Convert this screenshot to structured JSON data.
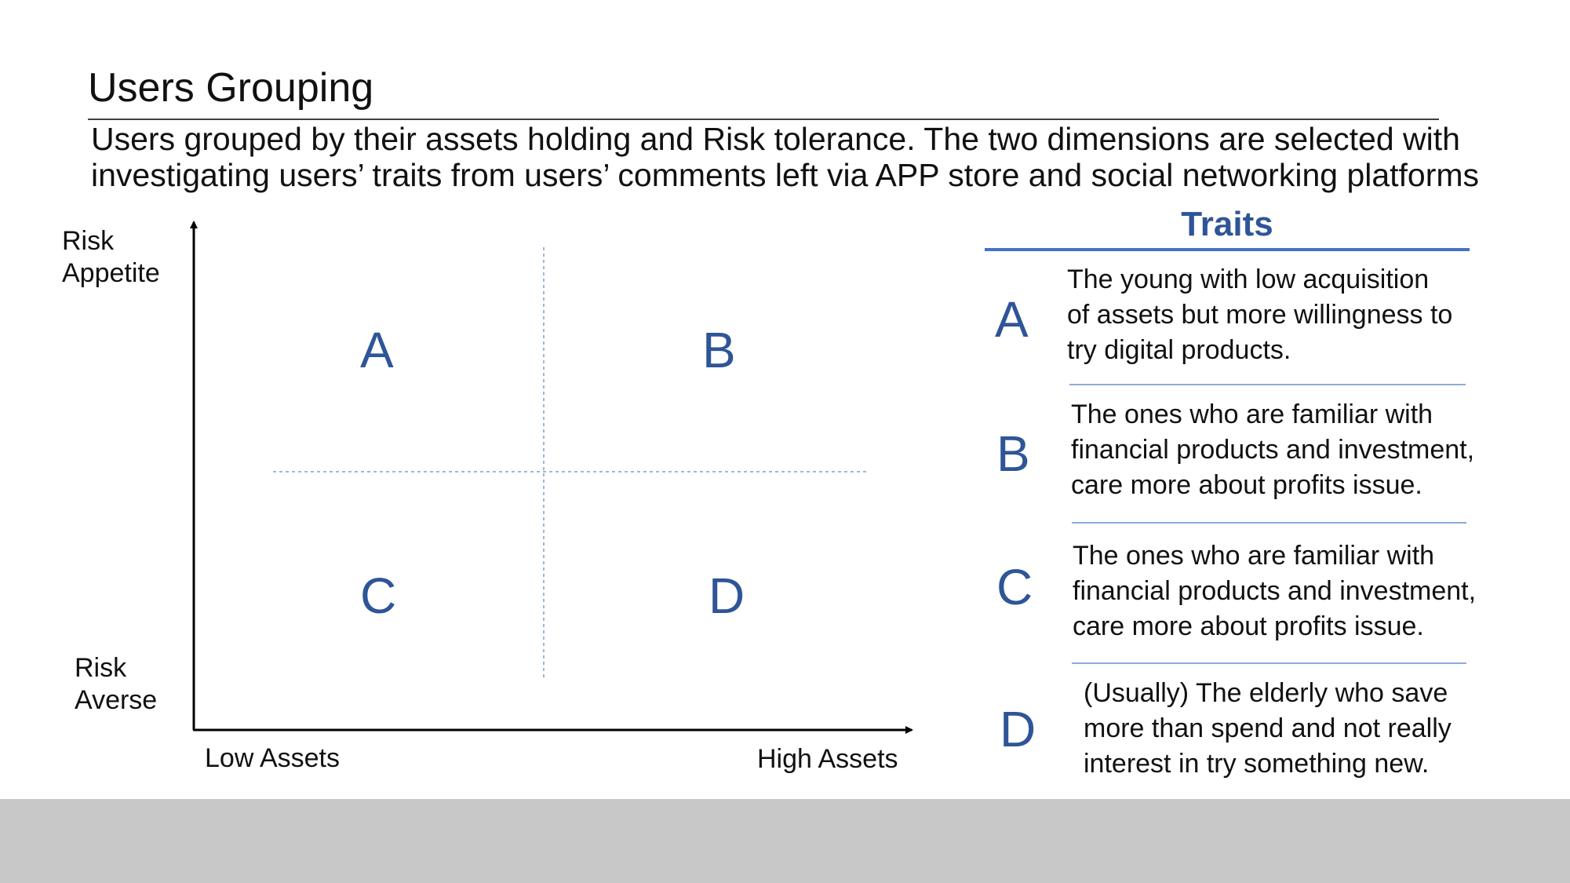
{
  "slide": {
    "title": "Users Grouping",
    "subtitle_lines": [
      "Users grouped by their assets holding and Risk tolerance. The two dimensions are selected with",
      "investigating users’ traits from users’ comments left via APP store and social networking platforms"
    ]
  },
  "matrix": {
    "y_axis": {
      "top_line1": "Risk",
      "top_line2": "Appetite",
      "bottom_line1": "Risk",
      "bottom_line2": "Averse"
    },
    "x_axis": {
      "left": "Low Assets",
      "right": "High Assets"
    },
    "quadrants": {
      "top_left": "A",
      "top_right": "B",
      "bottom_left": "C",
      "bottom_right": "D"
    }
  },
  "traits": {
    "title": "Traits",
    "items": [
      {
        "letter": "A",
        "lines": [
          "The young with low acquisition",
          "of assets but more willingness to",
          "try digital products."
        ]
      },
      {
        "letter": "B",
        "lines": [
          "The ones who are familiar with",
          "financial products and investment,",
          "care more about profits issue."
        ]
      },
      {
        "letter": "C",
        "lines": [
          "The ones who are familiar with",
          "financial products and investment,",
          "care more about profits issue."
        ]
      },
      {
        "letter": "D",
        "lines": [
          "(Usually) The elderly who save",
          "more than spend and not really",
          "interest in try something new."
        ]
      }
    ]
  },
  "colors": {
    "accent": "#2f5597",
    "traits_rule": "#4472c4",
    "divider": "#8faadc",
    "footer": "#c8c8c8"
  }
}
